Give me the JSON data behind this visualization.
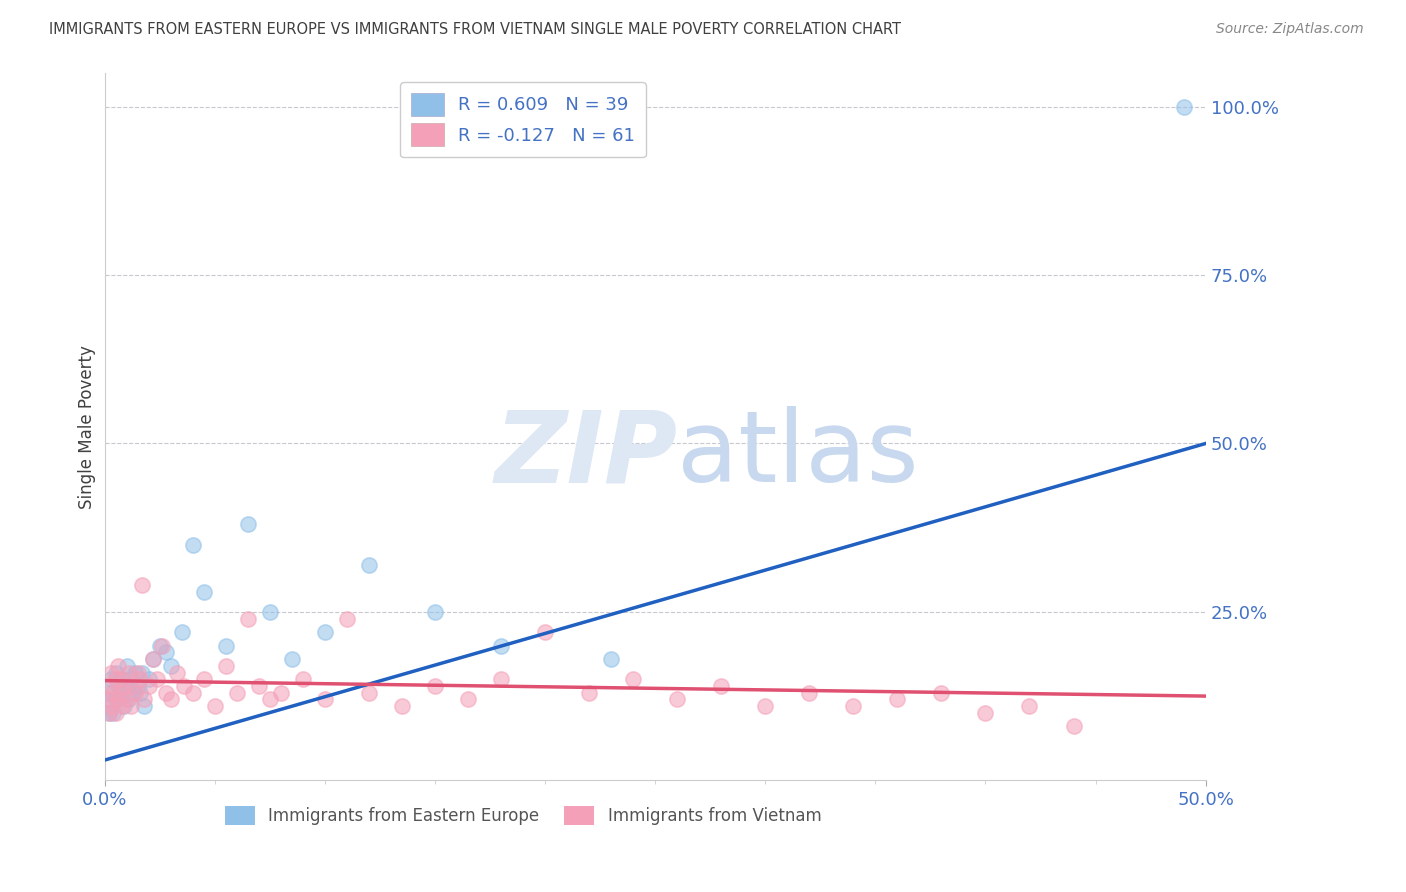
{
  "title": "IMMIGRANTS FROM EASTERN EUROPE VS IMMIGRANTS FROM VIETNAM SINGLE MALE POVERTY CORRELATION CHART",
  "source": "Source: ZipAtlas.com",
  "ylabel": "Single Male Poverty",
  "legend_blue_label": "R = 0.609   N = 39",
  "legend_pink_label": "R = -0.127   N = 61",
  "legend_bottom_blue": "Immigrants from Eastern Europe",
  "legend_bottom_pink": "Immigrants from Vietnam",
  "ytick_labels": [
    "100.0%",
    "75.0%",
    "50.0%",
    "25.0%"
  ],
  "ytick_values": [
    1.0,
    0.75,
    0.5,
    0.25
  ],
  "xtick_labels": [
    "0.0%",
    "50.0%"
  ],
  "xtick_values": [
    0.0,
    0.5
  ],
  "blue_color": "#90c0e8",
  "pink_color": "#f4a0b8",
  "blue_line_color": "#2060c0",
  "pink_line_color": "#e05070",
  "title_color": "#404040",
  "axis_label_color": "#4472C4",
  "grid_color": "#c8c8d0",
  "background_color": "#ffffff",
  "blue_scatter_x": [
    0.001,
    0.002,
    0.002,
    0.003,
    0.004,
    0.005,
    0.005,
    0.006,
    0.007,
    0.008,
    0.009,
    0.01,
    0.01,
    0.011,
    0.012,
    0.013,
    0.014,
    0.015,
    0.016,
    0.017,
    0.018,
    0.02,
    0.022,
    0.025,
    0.028,
    0.03,
    0.035,
    0.04,
    0.045,
    0.055,
    0.065,
    0.075,
    0.085,
    0.1,
    0.12,
    0.15,
    0.18,
    0.23,
    0.49
  ],
  "blue_scatter_y": [
    0.12,
    0.1,
    0.13,
    0.15,
    0.1,
    0.12,
    0.16,
    0.14,
    0.13,
    0.15,
    0.11,
    0.14,
    0.17,
    0.12,
    0.15,
    0.13,
    0.16,
    0.14,
    0.13,
    0.16,
    0.11,
    0.15,
    0.18,
    0.2,
    0.19,
    0.17,
    0.22,
    0.35,
    0.28,
    0.2,
    0.38,
    0.25,
    0.18,
    0.22,
    0.32,
    0.25,
    0.2,
    0.18,
    1.0
  ],
  "pink_scatter_x": [
    0.001,
    0.002,
    0.002,
    0.003,
    0.003,
    0.004,
    0.005,
    0.005,
    0.006,
    0.006,
    0.007,
    0.008,
    0.008,
    0.009,
    0.01,
    0.011,
    0.012,
    0.013,
    0.014,
    0.015,
    0.016,
    0.017,
    0.018,
    0.02,
    0.022,
    0.024,
    0.026,
    0.028,
    0.03,
    0.033,
    0.036,
    0.04,
    0.045,
    0.05,
    0.055,
    0.06,
    0.065,
    0.07,
    0.075,
    0.08,
    0.09,
    0.1,
    0.11,
    0.12,
    0.135,
    0.15,
    0.165,
    0.18,
    0.2,
    0.22,
    0.24,
    0.26,
    0.28,
    0.3,
    0.32,
    0.34,
    0.36,
    0.38,
    0.4,
    0.42,
    0.44
  ],
  "pink_scatter_y": [
    0.12,
    0.1,
    0.14,
    0.11,
    0.16,
    0.13,
    0.1,
    0.15,
    0.12,
    0.17,
    0.13,
    0.11,
    0.15,
    0.14,
    0.12,
    0.16,
    0.11,
    0.14,
    0.13,
    0.16,
    0.15,
    0.29,
    0.12,
    0.14,
    0.18,
    0.15,
    0.2,
    0.13,
    0.12,
    0.16,
    0.14,
    0.13,
    0.15,
    0.11,
    0.17,
    0.13,
    0.24,
    0.14,
    0.12,
    0.13,
    0.15,
    0.12,
    0.24,
    0.13,
    0.11,
    0.14,
    0.12,
    0.15,
    0.22,
    0.13,
    0.15,
    0.12,
    0.14,
    0.11,
    0.13,
    0.11,
    0.12,
    0.13,
    0.1,
    0.11,
    0.08
  ],
  "blue_trendline_x": [
    0.0,
    0.5
  ],
  "blue_trendline_y": [
    0.03,
    0.5
  ],
  "pink_trendline_x": [
    0.0,
    0.5
  ],
  "pink_trendline_y": [
    0.148,
    0.125
  ],
  "xmin": 0.0,
  "xmax": 0.5,
  "ymin": 0.0,
  "ymax": 1.05
}
